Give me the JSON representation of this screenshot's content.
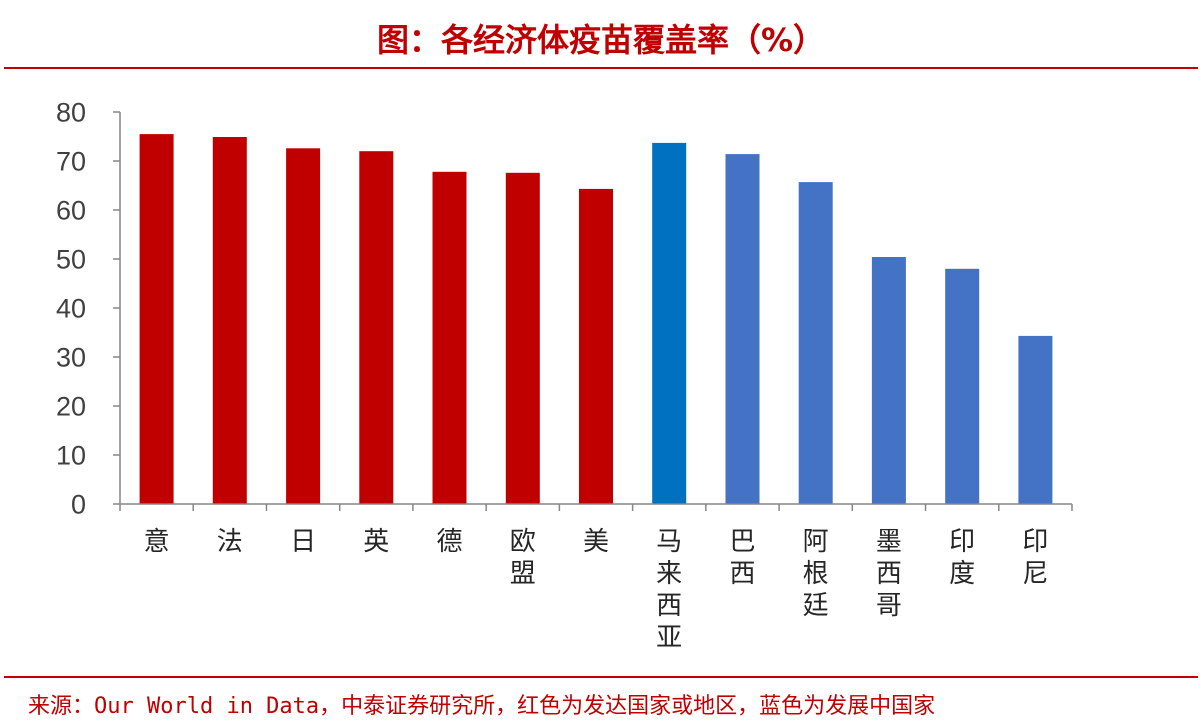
{
  "chart_data": {
    "type": "bar",
    "title": "图：各经济体疫苗覆盖率（%）",
    "xlabel": "",
    "ylabel": "",
    "categories": [
      "意",
      "法",
      "日",
      "英",
      "德",
      "欧盟",
      "美",
      "马来西亚",
      "巴西",
      "阿根廷",
      "墨西哥",
      "印度",
      "印尼"
    ],
    "values": [
      75.5,
      74.9,
      72.6,
      72.0,
      67.8,
      67.6,
      64.3,
      73.7,
      71.4,
      65.7,
      50.4,
      48.0,
      34.3
    ],
    "bar_colors": [
      "#C00000",
      "#C00000",
      "#C00000",
      "#C00000",
      "#C00000",
      "#C00000",
      "#C00000",
      "#0070C0",
      "#4472C4",
      "#4472C4",
      "#4472C4",
      "#4472C4",
      "#4472C4"
    ],
    "ylim": [
      0,
      80
    ],
    "yticks": [
      0,
      10,
      20,
      30,
      40,
      50,
      60,
      70,
      80
    ],
    "grid": false,
    "legend": "none"
  },
  "source": "来源：Our World in Data，中泰证券研究所，红色为发达国家或地区，蓝色为发展中国家",
  "colors": {
    "accent": "#C00000",
    "developed": "#C00000",
    "developing": "#4472C4",
    "highlight": "#0070C0",
    "axis": "#868686"
  }
}
